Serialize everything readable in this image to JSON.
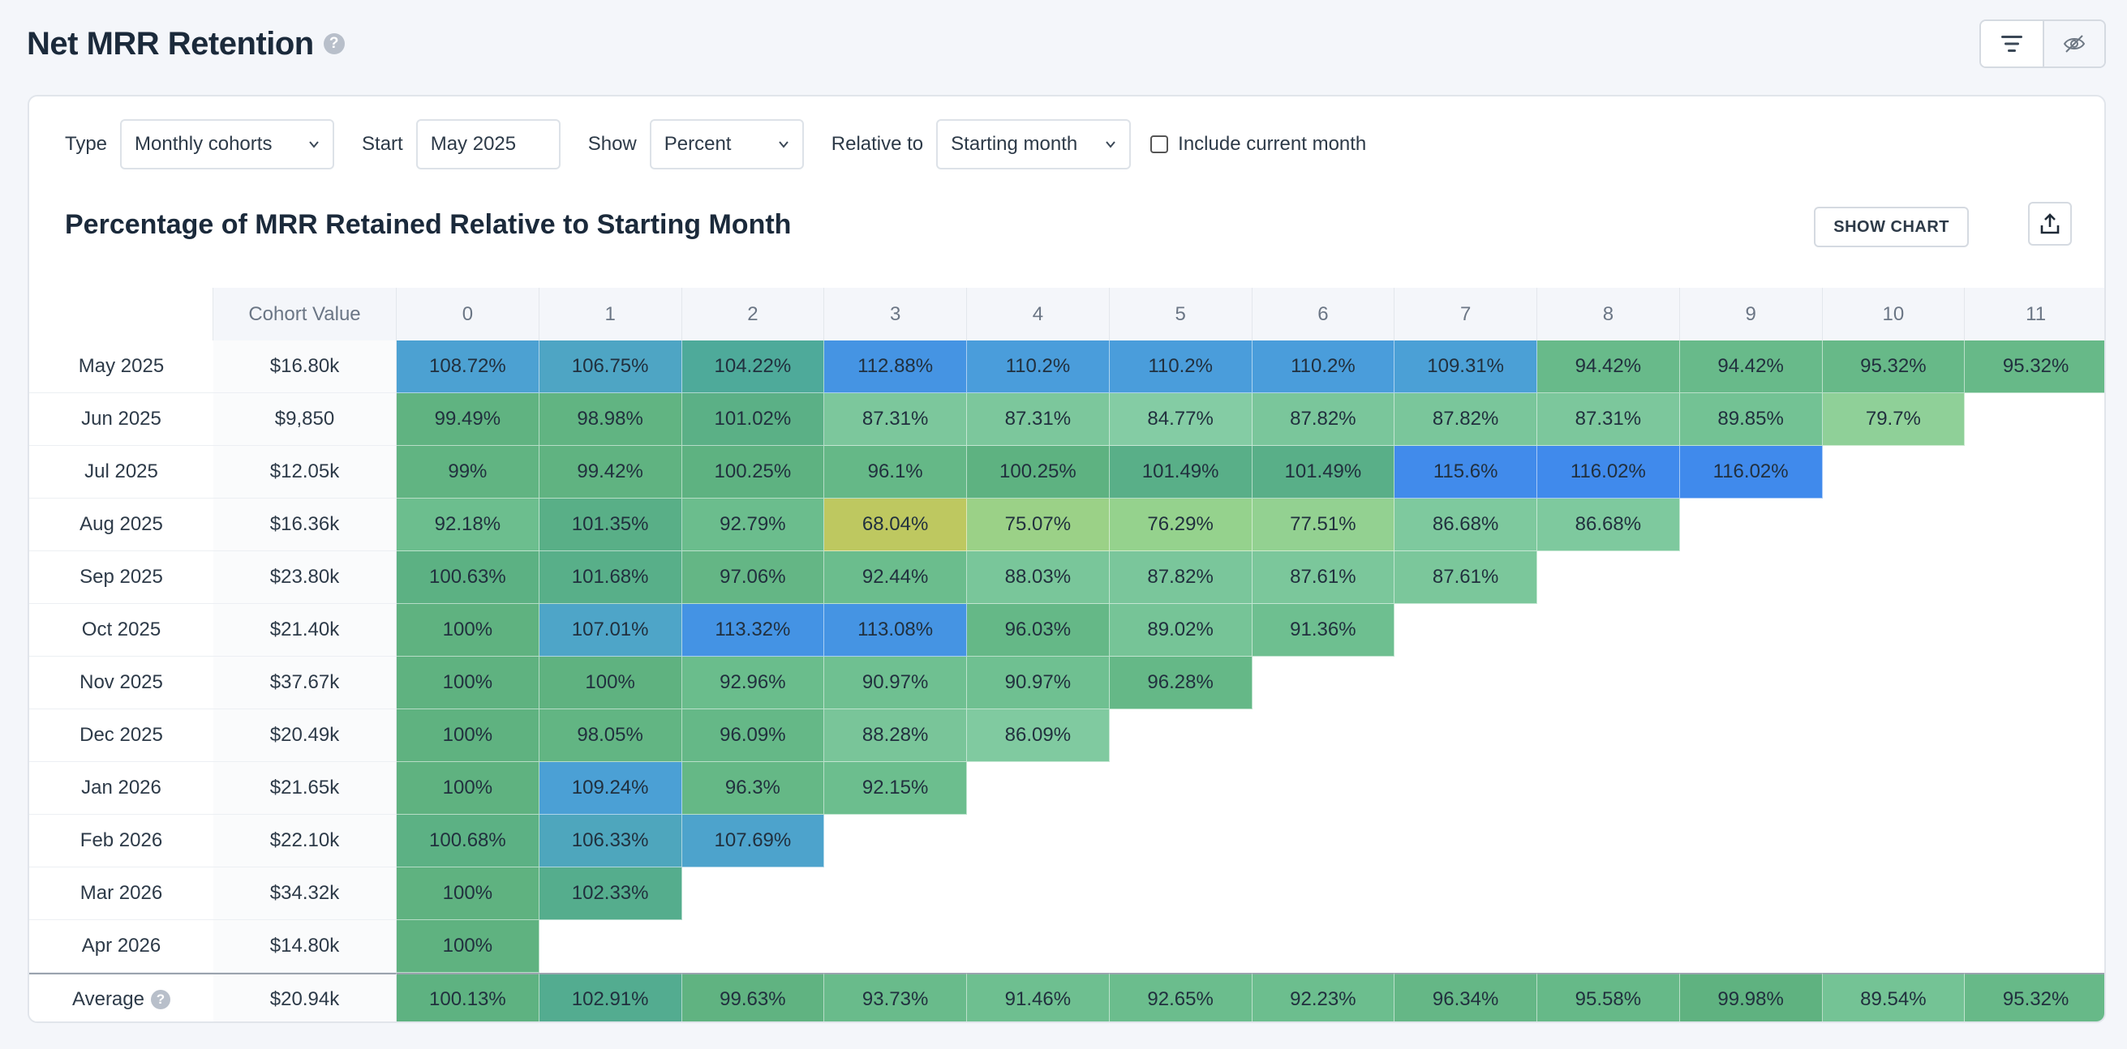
{
  "header": {
    "title": "Net MRR Retention",
    "help_icon": "question-circle-icon",
    "tools": [
      {
        "name": "filter-lines-icon"
      },
      {
        "name": "eye-slash-icon"
      }
    ]
  },
  "filters": {
    "type_label": "Type",
    "type_value": "Monthly cohorts",
    "start_label": "Start",
    "start_value": "May 2025",
    "show_label": "Show",
    "show_value": "Percent",
    "relative_label": "Relative to",
    "relative_value": "Starting month",
    "include_current_label": "Include current month",
    "include_current_checked": false
  },
  "section": {
    "title": "Percentage of MRR Retained Relative to Starting Month",
    "show_chart_label": "SHOW CHART",
    "export_icon": "upload-icon"
  },
  "table": {
    "value_header": "Cohort Value",
    "columns": [
      "0",
      "1",
      "2",
      "3",
      "4",
      "5",
      "6",
      "7",
      "8",
      "9",
      "10",
      "11"
    ],
    "rows": [
      {
        "label": "May 2025",
        "value": "$16.80k",
        "cells": [
          "108.72%",
          "106.75%",
          "104.22%",
          "112.88%",
          "110.2%",
          "110.2%",
          "110.2%",
          "109.31%",
          "94.42%",
          "94.42%",
          "95.32%",
          "95.32%"
        ],
        "nums": [
          108.72,
          106.75,
          104.22,
          112.88,
          110.2,
          110.2,
          110.2,
          109.31,
          94.42,
          94.42,
          95.32,
          95.32
        ]
      },
      {
        "label": "Jun 2025",
        "value": "$9,850",
        "cells": [
          "99.49%",
          "98.98%",
          "101.02%",
          "87.31%",
          "87.31%",
          "84.77%",
          "87.82%",
          "87.82%",
          "87.31%",
          "89.85%",
          "79.7%"
        ],
        "nums": [
          99.49,
          98.98,
          101.02,
          87.31,
          87.31,
          84.77,
          87.82,
          87.82,
          87.31,
          89.85,
          79.7
        ]
      },
      {
        "label": "Jul 2025",
        "value": "$12.05k",
        "cells": [
          "99%",
          "99.42%",
          "100.25%",
          "96.1%",
          "100.25%",
          "101.49%",
          "101.49%",
          "115.6%",
          "116.02%",
          "116.02%"
        ],
        "nums": [
          99,
          99.42,
          100.25,
          96.1,
          100.25,
          101.49,
          101.49,
          115.6,
          116.02,
          116.02
        ]
      },
      {
        "label": "Aug 2025",
        "value": "$16.36k",
        "cells": [
          "92.18%",
          "101.35%",
          "92.79%",
          "68.04%",
          "75.07%",
          "76.29%",
          "77.51%",
          "86.68%",
          "86.68%"
        ],
        "nums": [
          92.18,
          101.35,
          92.79,
          68.04,
          75.07,
          76.29,
          77.51,
          86.68,
          86.68
        ]
      },
      {
        "label": "Sep 2025",
        "value": "$23.80k",
        "cells": [
          "100.63%",
          "101.68%",
          "97.06%",
          "92.44%",
          "88.03%",
          "87.82%",
          "87.61%",
          "87.61%"
        ],
        "nums": [
          100.63,
          101.68,
          97.06,
          92.44,
          88.03,
          87.82,
          87.61,
          87.61
        ]
      },
      {
        "label": "Oct 2025",
        "value": "$21.40k",
        "cells": [
          "100%",
          "107.01%",
          "113.32%",
          "113.08%",
          "96.03%",
          "89.02%",
          "91.36%"
        ],
        "nums": [
          100,
          107.01,
          113.32,
          113.08,
          96.03,
          89.02,
          91.36
        ]
      },
      {
        "label": "Nov 2025",
        "value": "$37.67k",
        "cells": [
          "100%",
          "100%",
          "92.96%",
          "90.97%",
          "90.97%",
          "96.28%"
        ],
        "nums": [
          100,
          100,
          92.96,
          90.97,
          90.97,
          96.28
        ]
      },
      {
        "label": "Dec 2025",
        "value": "$20.49k",
        "cells": [
          "100%",
          "98.05%",
          "96.09%",
          "88.28%",
          "86.09%"
        ],
        "nums": [
          100,
          98.05,
          96.09,
          88.28,
          86.09
        ]
      },
      {
        "label": "Jan 2026",
        "value": "$21.65k",
        "cells": [
          "100%",
          "109.24%",
          "96.3%",
          "92.15%"
        ],
        "nums": [
          100,
          109.24,
          96.3,
          92.15
        ]
      },
      {
        "label": "Feb 2026",
        "value": "$22.10k",
        "cells": [
          "100.68%",
          "106.33%",
          "107.69%"
        ],
        "nums": [
          100.68,
          106.33,
          107.69
        ]
      },
      {
        "label": "Mar 2026",
        "value": "$34.32k",
        "cells": [
          "100%",
          "102.33%"
        ],
        "nums": [
          100,
          102.33
        ]
      },
      {
        "label": "Apr 2026",
        "value": "$14.80k",
        "cells": [
          "100%"
        ],
        "nums": [
          100
        ]
      }
    ],
    "average": {
      "label": "Average",
      "value": "$20.94k",
      "cells": [
        "100.13%",
        "102.91%",
        "99.63%",
        "93.73%",
        "91.46%",
        "92.65%",
        "92.23%",
        "96.34%",
        "95.58%",
        "99.98%",
        "89.54%",
        "95.32%"
      ],
      "nums": [
        100.13,
        102.91,
        99.63,
        93.73,
        91.46,
        92.65,
        92.23,
        96.34,
        95.58,
        99.98,
        89.54,
        95.32
      ]
    }
  }
}
